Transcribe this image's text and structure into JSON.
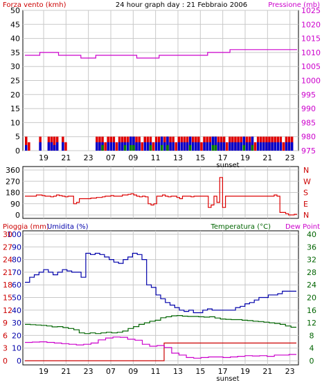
{
  "header": {
    "title": "24 hour graph day : 21 Febbraio 2006",
    "left_label": "Forza vento (kmh)",
    "right_label": "Pressione (mb)"
  },
  "colors": {
    "frame": "#000000",
    "grid": "#c8c8c8",
    "wind_avg": "#008000",
    "wind_gust": "#0000cc",
    "wind_max": "#e00000",
    "pressure": "#cc00cc",
    "direction": "#dd0000",
    "humidity": "#0000aa",
    "temperature": "#006400",
    "dewpoint": "#cc00cc",
    "rain": "#cc0000",
    "label_red": "#cc0000",
    "label_blue": "#0000aa",
    "label_green": "#006400",
    "label_magenta": "#cc00cc",
    "label_black": "#000000"
  },
  "chart_data": [
    {
      "type": "bar",
      "panel": "wind",
      "y_left_label": "Forza vento (kmh)",
      "y_right_label": "Pressione (mb)",
      "ylim_left": [
        0,
        50
      ],
      "ylim_right": [
        975,
        1025
      ],
      "yticks_left": [
        "0",
        "5",
        "10",
        "15",
        "20",
        "25",
        "30",
        "35",
        "40",
        "45",
        "50"
      ],
      "yticks_right": [
        "975",
        "980",
        "985",
        "990",
        "995",
        "1000",
        "1005",
        "1010",
        "1015",
        "1020",
        "1025"
      ],
      "xticks": [
        "19",
        "21",
        "23",
        "07",
        "09",
        "11",
        "13",
        "15",
        "17",
        "19",
        "21",
        "23"
      ],
      "x_annotation": "sunset",
      "grid": true,
      "series": [
        {
          "series_key": "wind_max",
          "kind": "bar",
          "values": [
            5,
            3,
            0,
            0,
            0,
            5,
            0,
            0,
            5,
            5,
            5,
            5,
            0,
            5,
            3,
            0,
            0,
            0,
            0,
            0,
            0,
            0,
            0,
            0,
            0,
            5,
            5,
            5,
            3,
            5,
            5,
            5,
            3,
            5,
            5,
            5,
            5,
            5,
            5,
            5,
            5,
            3,
            5,
            5,
            5,
            3,
            5,
            5,
            5,
            5,
            5,
            5,
            5,
            3,
            5,
            5,
            5,
            5,
            5,
            5,
            5,
            5,
            3,
            5,
            5,
            5,
            5,
            5,
            5,
            5,
            5,
            3,
            5,
            5,
            5,
            5,
            5,
            5,
            5,
            5,
            5,
            3,
            5,
            5,
            5,
            5,
            5,
            5,
            5,
            5,
            5,
            3,
            5,
            5,
            5
          ]
        },
        {
          "series_key": "wind_gust",
          "kind": "bar",
          "values": [
            2,
            0,
            0,
            0,
            0,
            3,
            0,
            0,
            3,
            3,
            2,
            3,
            0,
            3,
            0,
            0,
            0,
            0,
            0,
            0,
            0,
            0,
            0,
            0,
            0,
            3,
            3,
            3,
            0,
            3,
            3,
            3,
            0,
            3,
            3,
            3,
            3,
            5,
            5,
            3,
            3,
            0,
            3,
            3,
            3,
            0,
            3,
            3,
            5,
            3,
            5,
            3,
            3,
            0,
            3,
            3,
            3,
            3,
            5,
            3,
            3,
            3,
            0,
            3,
            3,
            3,
            5,
            5,
            3,
            3,
            3,
            0,
            3,
            3,
            3,
            3,
            3,
            5,
            3,
            3,
            5,
            0,
            3,
            3,
            3,
            3,
            3,
            3,
            3,
            3,
            3,
            0,
            3,
            3,
            3
          ]
        },
        {
          "series_key": "wind_avg",
          "kind": "bar",
          "values": [
            0,
            0,
            0,
            0,
            0,
            0,
            0,
            0,
            0,
            0,
            0,
            0,
            0,
            0,
            0,
            0,
            0,
            0,
            0,
            0,
            0,
            0,
            0,
            0,
            0,
            0,
            0,
            2,
            0,
            0,
            0,
            0,
            0,
            0,
            0,
            2,
            0,
            2,
            2,
            0,
            0,
            0,
            0,
            0,
            2,
            0,
            0,
            0,
            2,
            0,
            2,
            0,
            0,
            0,
            0,
            0,
            0,
            0,
            2,
            0,
            0,
            0,
            0,
            0,
            0,
            0,
            2,
            2,
            0,
            0,
            0,
            0,
            0,
            0,
            0,
            0,
            0,
            2,
            0,
            0,
            2,
            0,
            0,
            0,
            0,
            0,
            0,
            0,
            0,
            0,
            0,
            0,
            0,
            0,
            0
          ]
        },
        {
          "series_key": "pressure",
          "kind": "line",
          "axis": "right",
          "values": [
            1009,
            1009,
            1009,
            1009,
            1010,
            1010,
            1010,
            1010,
            1010,
            1009,
            1009,
            1009,
            1009,
            1009,
            1009,
            1008,
            1008,
            1008,
            1008,
            1009,
            1009,
            1009,
            1009,
            1009,
            1009,
            1009,
            1009,
            1009,
            1009,
            1009,
            1008,
            1008,
            1008,
            1008,
            1008,
            1008,
            1009,
            1009,
            1009,
            1009,
            1009,
            1009,
            1009,
            1009,
            1009,
            1009,
            1009,
            1009,
            1009,
            1010,
            1010,
            1010,
            1010,
            1010,
            1010,
            1011,
            1011,
            1011,
            1011,
            1011,
            1011,
            1011,
            1011,
            1011,
            1011,
            1011,
            1011,
            1011,
            1011,
            1011,
            1011,
            1011,
            1011
          ]
        }
      ]
    },
    {
      "type": "line",
      "panel": "direction",
      "ylim": [
        0,
        360
      ],
      "yticks": [
        "0",
        "90",
        "180",
        "270",
        "360"
      ],
      "compass_labels": [
        "N",
        "W",
        "S",
        "E",
        "N"
      ],
      "grid": true,
      "series": [
        {
          "series_key": "direction",
          "values": [
            150,
            150,
            150,
            150,
            160,
            160,
            155,
            150,
            150,
            145,
            150,
            160,
            155,
            150,
            145,
            150,
            150,
            90,
            100,
            130,
            130,
            130,
            130,
            135,
            135,
            140,
            140,
            145,
            150,
            150,
            155,
            150,
            150,
            150,
            160,
            160,
            165,
            170,
            160,
            150,
            145,
            150,
            145,
            90,
            80,
            90,
            150,
            150,
            160,
            150,
            145,
            150,
            150,
            140,
            130,
            150,
            150,
            150,
            145,
            150,
            150,
            150,
            150,
            150,
            60,
            80,
            150,
            100,
            300,
            60,
            150,
            150,
            150,
            150,
            150,
            150,
            150,
            150,
            150,
            150,
            150,
            150,
            150,
            150,
            150,
            150,
            150,
            160,
            150,
            20,
            20,
            10,
            0,
            0,
            5
          ]
        }
      ]
    },
    {
      "type": "line",
      "panel": "humidity",
      "y_labels": [
        "Pioggia (mm)",
        "Umidita (%)",
        "Temperatura (°C)",
        "Dew Point"
      ],
      "ylim_humidity": [
        0,
        100
      ],
      "ylim_rain": [
        0,
        30
      ],
      "ylim_temp": [
        0,
        40
      ],
      "yticks_humidity": [
        "0",
        "10",
        "20",
        "30",
        "40",
        "50",
        "60",
        "70",
        "80",
        "90",
        "100"
      ],
      "yticks_rain": [
        "0",
        "3",
        "6",
        "9",
        "12",
        "15",
        "18",
        "21",
        "24",
        "27",
        "30"
      ],
      "yticks_temp": [
        "0",
        "4",
        "8",
        "12",
        "16",
        "20",
        "24",
        "28",
        "32",
        "36",
        "40"
      ],
      "xticks": [
        "19",
        "21",
        "23",
        "07",
        "09",
        "11",
        "13",
        "15",
        "17",
        "19",
        "21",
        "23"
      ],
      "x_annotation": "sunset",
      "grid": true,
      "series": [
        {
          "series_key": "humidity",
          "axis": "humidity",
          "values": [
            62,
            66,
            68,
            70,
            72,
            70,
            68,
            70,
            72,
            71,
            70,
            70,
            66,
            85,
            84,
            85,
            84,
            82,
            80,
            78,
            77,
            80,
            82,
            85,
            84,
            80,
            60,
            58,
            52,
            49,
            46,
            44,
            42,
            40,
            39,
            40,
            38,
            38,
            40,
            41,
            40,
            40,
            40,
            40,
            40,
            42,
            43,
            45,
            46,
            48,
            50,
            50,
            52,
            52,
            53,
            55,
            55,
            55
          ]
        },
        {
          "series_key": "temperature",
          "axis": "temp",
          "values": [
            11.5,
            11.4,
            11.3,
            11.2,
            11.0,
            10.7,
            10.8,
            10.5,
            10.2,
            9.8,
            8.8,
            8.6,
            8.8,
            8.6,
            8.8,
            9.0,
            8.8,
            9.0,
            9.4,
            10.2,
            10.8,
            11.5,
            12.0,
            12.5,
            12.8,
            13.6,
            13.9,
            14.2,
            14.3,
            14.1,
            14.0,
            14.0,
            13.9,
            13.8,
            13.9,
            13.5,
            13.2,
            13.1,
            13.0,
            13.0,
            12.8,
            12.7,
            12.5,
            12.4,
            12.2,
            12.0,
            11.8,
            11.5,
            11.0,
            10.6
          ]
        },
        {
          "series_key": "dewpoint",
          "axis": "temp",
          "values": [
            5.8,
            5.9,
            6.0,
            5.8,
            5.6,
            5.4,
            5.2,
            5.0,
            5.2,
            5.6,
            6.6,
            7.2,
            7.5,
            7.4,
            6.8,
            6.5,
            5.2,
            4.6,
            4.8,
            4.2,
            2.4,
            1.8,
            1.0,
            0.8,
            1.0,
            1.2,
            1.2,
            1.0,
            1.2,
            1.4,
            1.6,
            1.5,
            1.6,
            1.4,
            1.8,
            1.8,
            2.0
          ]
        },
        {
          "series_key": "rain",
          "axis": "rain",
          "values": [
            0,
            0,
            0,
            0,
            0,
            0,
            0,
            0,
            0,
            0,
            0,
            0,
            0,
            0,
            0,
            0,
            0,
            0,
            0,
            0,
            4.2,
            4.2,
            4.2,
            4.2,
            4.2,
            4.2,
            4.2,
            4.2,
            4.2,
            4.2,
            4.2,
            4.2,
            4.2,
            4.2,
            4.2,
            4.2,
            4.2,
            4.2,
            4.2
          ]
        }
      ]
    }
  ]
}
